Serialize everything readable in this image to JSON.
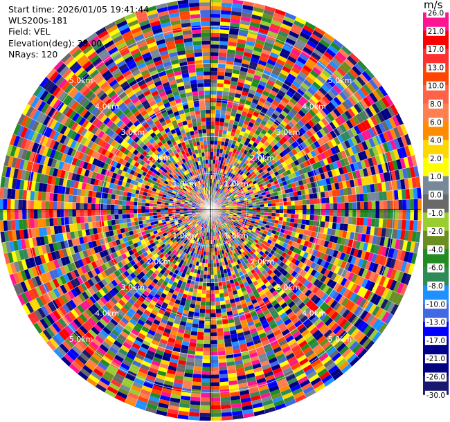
{
  "info": {
    "start_time": "Start time: 2026/01/05 19:41:44",
    "instrument": "WLS200s-181",
    "field": "Field: VEL",
    "elevation": "Elevation(deg): 35.00",
    "nrays": "NRays: 120"
  },
  "colorbar": {
    "unit": "m/s",
    "levels": [
      {
        "value": "26.0",
        "color": "#ff1493"
      },
      {
        "value": "21.0",
        "color": "#ff0000"
      },
      {
        "value": "17.0",
        "color": "#ff3030"
      },
      {
        "value": "13.0",
        "color": "#ff4500"
      },
      {
        "value": "10.0",
        "color": "#ff6347"
      },
      {
        "value": "8.0",
        "color": "#ff7f50"
      },
      {
        "value": "6.0",
        "color": "#ff8c00"
      },
      {
        "value": "4.0",
        "color": "#ffd700"
      },
      {
        "value": "2.0",
        "color": "#ffff00"
      },
      {
        "value": "1.0",
        "color": "#778899"
      },
      {
        "value": "0.0",
        "color": "#696969"
      },
      {
        "value": "-1.0",
        "color": "#9acd32"
      },
      {
        "value": "-2.0",
        "color": "#6b8e23"
      },
      {
        "value": "-4.0",
        "color": "#228b22"
      },
      {
        "value": "-6.0",
        "color": "#2e8b57"
      },
      {
        "value": "-8.0",
        "color": "#1e90ff"
      },
      {
        "value": "-10.0",
        "color": "#4169e1"
      },
      {
        "value": "-13.0",
        "color": "#0000ff"
      },
      {
        "value": "-17.0",
        "color": "#00008b"
      },
      {
        "value": "-21.0",
        "color": "#000080"
      },
      {
        "value": "-26.0",
        "color": "#191970"
      },
      {
        "value": "-30.0",
        "color": "#ffffff"
      }
    ]
  },
  "chart_data": {
    "type": "heatmap",
    "projection": "polar PPI",
    "field": "VEL",
    "elevation_deg": 35.0,
    "n_rays": 120,
    "range_rings_km": [
      1.0,
      2.0,
      3.0,
      4.0,
      5.0
    ],
    "ring_labels": [
      "1.0km",
      "2.0km",
      "3.0km",
      "4.0km",
      "5.0km"
    ],
    "max_range_km": 5.75,
    "vmin": -30.0,
    "vmax": 26.0
  }
}
